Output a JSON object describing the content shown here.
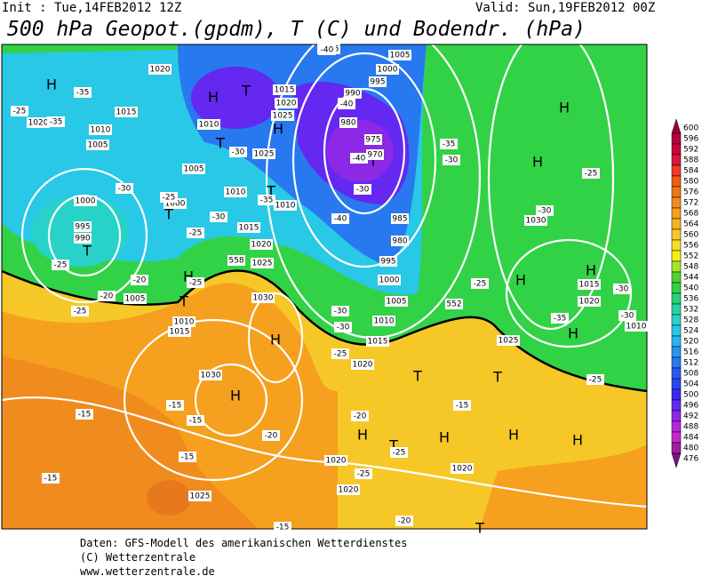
{
  "header": {
    "init": "Init : Tue,14FEB2012 12Z",
    "valid": "Valid: Sun,19FEB2012 00Z",
    "title": "500 hPa Geopot.(gpdm), T (C) und Bodendr. (hPa)"
  },
  "colorbar": {
    "levels": [
      600,
      596,
      592,
      588,
      584,
      580,
      576,
      572,
      568,
      564,
      560,
      556,
      552,
      548,
      544,
      540,
      536,
      532,
      528,
      524,
      520,
      516,
      512,
      508,
      504,
      500,
      496,
      492,
      488,
      484,
      480,
      476
    ],
    "colors": [
      "#a0003c",
      "#b4003c",
      "#c8003c",
      "#dc143c",
      "#f03c28",
      "#f55a14",
      "#f07814",
      "#f08c1e",
      "#f5a01e",
      "#f5b428",
      "#f5c828",
      "#f5dc28",
      "#f0f014",
      "#a0e628",
      "#50d232",
      "#32d246",
      "#28d278",
      "#28d2a0",
      "#28d2c8",
      "#28c8e6",
      "#28b4f0",
      "#2896f0",
      "#2878f0",
      "#285af0",
      "#2846f0",
      "#3c28f0",
      "#6428f0",
      "#8c28e6",
      "#b428dc",
      "#c828c8",
      "#a01ea0",
      "#781478"
    ]
  },
  "map_labels": [
    "H",
    "H",
    "T",
    "H",
    "T",
    "T",
    "T",
    "T",
    "H",
    "T",
    "H",
    "H",
    "T",
    "T",
    "H",
    "T",
    "H",
    "H",
    "H",
    "H",
    "H",
    "H",
    "H",
    "H",
    "T",
    "T",
    "1020",
    "1015",
    "1020",
    "1010",
    "1005",
    "1010",
    "1015",
    "1020",
    "1025",
    "1025",
    "1005",
    "1010",
    "1000",
    "1010",
    "1000",
    "995",
    "990",
    "1015",
    "1020",
    "1025",
    "1005",
    "1010",
    "1015",
    "1030",
    "1030",
    "1025",
    "1015",
    "1005",
    "1000",
    "995",
    "990",
    "985",
    "980",
    "975",
    "970",
    "985",
    "980",
    "995",
    "1000",
    "1005",
    "1010",
    "1015",
    "1020",
    "1025",
    "1030",
    "1015",
    "1020",
    "1010",
    "1020",
    "1020",
    "1020",
    "-35",
    "-25",
    "-35",
    "-30",
    "-25",
    "-30",
    "-25",
    "-30",
    "-35",
    "-40",
    "-40",
    "-35",
    "-30",
    "-40",
    "-30",
    "-40",
    "-25",
    "-20",
    "-25",
    "-20",
    "-25",
    "-30",
    "-30",
    "-25",
    "-30",
    "-35",
    "-30",
    "-30",
    "-25",
    "-25",
    "-20",
    "-15",
    "-15",
    "-15",
    "-15",
    "-20",
    "-25",
    "-25",
    "-15",
    "-20",
    "-15",
    "-25",
    "-15",
    "558",
    "552"
  ],
  "footer": [
    "Daten: GFS-Modell des amerikanischen Wetterdienstes",
    "(C) Wetterzentrale",
    "www.wetterzentrale.de"
  ]
}
